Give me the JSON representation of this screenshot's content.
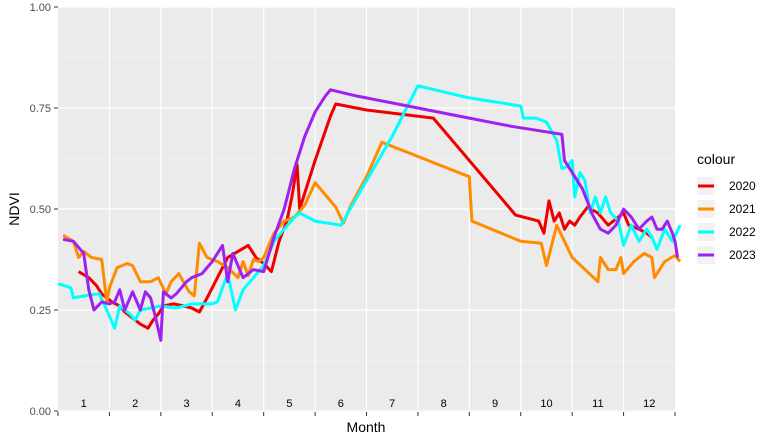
{
  "chart_data": {
    "type": "line",
    "xlabel": "Month",
    "ylabel": "NDVI",
    "ylim": [
      0,
      1
    ],
    "xlim": [
      0,
      12
    ],
    "y_ticks": [
      "0.00",
      "0.25",
      "0.50",
      "0.75",
      "1.00"
    ],
    "y_tick_values": [
      0,
      0.25,
      0.5,
      0.75,
      1.0
    ],
    "month_labels": [
      "1",
      "2",
      "3",
      "4",
      "5",
      "6",
      "7",
      "8",
      "9",
      "10",
      "11",
      "12"
    ],
    "legend_title": "colour",
    "legend_position": "right",
    "grid": true,
    "background": "#ebebeb",
    "series": [
      {
        "name": "2020",
        "color": "#ee0000",
        "points": [
          [
            0.4,
            0.345
          ],
          [
            0.6,
            0.33
          ],
          [
            0.75,
            0.31
          ],
          [
            0.85,
            0.29
          ],
          [
            0.95,
            0.28
          ],
          [
            1.05,
            0.27
          ],
          [
            1.2,
            0.26
          ],
          [
            1.3,
            0.245
          ],
          [
            1.45,
            0.23
          ],
          [
            1.6,
            0.215
          ],
          [
            1.75,
            0.205
          ],
          [
            1.85,
            0.225
          ],
          [
            1.95,
            0.24
          ],
          [
            2.05,
            0.26
          ],
          [
            2.25,
            0.265
          ],
          [
            2.45,
            0.26
          ],
          [
            2.6,
            0.255
          ],
          [
            2.75,
            0.245
          ],
          [
            2.9,
            0.28
          ],
          [
            3.1,
            0.33
          ],
          [
            3.3,
            0.38
          ],
          [
            3.5,
            0.395
          ],
          [
            3.7,
            0.41
          ],
          [
            3.85,
            0.38
          ],
          [
            4.0,
            0.365
          ],
          [
            4.15,
            0.345
          ],
          [
            4.3,
            0.42
          ],
          [
            4.45,
            0.47
          ],
          [
            4.55,
            0.53
          ],
          [
            4.65,
            0.61
          ],
          [
            4.7,
            0.5
          ],
          [
            5.0,
            0.62
          ],
          [
            5.3,
            0.73
          ],
          [
            5.4,
            0.76
          ],
          [
            6.0,
            0.745
          ],
          [
            7.3,
            0.725
          ],
          [
            8.2,
            0.59
          ],
          [
            8.9,
            0.485
          ],
          [
            9.35,
            0.47
          ],
          [
            9.45,
            0.44
          ],
          [
            9.55,
            0.52
          ],
          [
            9.65,
            0.47
          ],
          [
            9.75,
            0.49
          ],
          [
            9.85,
            0.45
          ],
          [
            9.95,
            0.47
          ],
          [
            10.05,
            0.46
          ],
          [
            10.15,
            0.48
          ],
          [
            10.3,
            0.505
          ],
          [
            10.5,
            0.49
          ],
          [
            10.7,
            0.46
          ],
          [
            10.9,
            0.48
          ],
          [
            11.0,
            0.49
          ],
          [
            11.1,
            0.46
          ],
          [
            11.3,
            0.45
          ],
          [
            11.45,
            0.44
          ],
          [
            11.55,
            0.43
          ]
        ]
      },
      {
        "name": "2021",
        "color": "#ff8c00",
        "points": [
          [
            0.1,
            0.435
          ],
          [
            0.3,
            0.42
          ],
          [
            0.4,
            0.38
          ],
          [
            0.5,
            0.395
          ],
          [
            0.65,
            0.38
          ],
          [
            0.85,
            0.375
          ],
          [
            0.95,
            0.27
          ],
          [
            1.0,
            0.305
          ],
          [
            1.15,
            0.355
          ],
          [
            1.35,
            0.365
          ],
          [
            1.45,
            0.36
          ],
          [
            1.6,
            0.32
          ],
          [
            1.8,
            0.32
          ],
          [
            1.95,
            0.33
          ],
          [
            2.1,
            0.29
          ],
          [
            2.2,
            0.32
          ],
          [
            2.35,
            0.34
          ],
          [
            2.55,
            0.295
          ],
          [
            2.65,
            0.285
          ],
          [
            2.75,
            0.415
          ],
          [
            2.9,
            0.38
          ],
          [
            3.1,
            0.37
          ],
          [
            3.3,
            0.355
          ],
          [
            3.5,
            0.33
          ],
          [
            3.6,
            0.37
          ],
          [
            3.7,
            0.335
          ],
          [
            3.8,
            0.375
          ],
          [
            3.9,
            0.37
          ],
          [
            4.0,
            0.38
          ],
          [
            4.2,
            0.44
          ],
          [
            4.4,
            0.47
          ],
          [
            4.6,
            0.48
          ],
          [
            4.8,
            0.51
          ],
          [
            5.0,
            0.565
          ],
          [
            5.2,
            0.535
          ],
          [
            5.4,
            0.505
          ],
          [
            5.55,
            0.465
          ],
          [
            5.7,
            0.51
          ],
          [
            6.0,
            0.58
          ],
          [
            6.3,
            0.665
          ],
          [
            6.8,
            0.64
          ],
          [
            7.5,
            0.605
          ],
          [
            8.0,
            0.58
          ],
          [
            8.05,
            0.47
          ],
          [
            9.0,
            0.42
          ],
          [
            9.4,
            0.415
          ],
          [
            9.5,
            0.36
          ],
          [
            9.7,
            0.46
          ],
          [
            10.0,
            0.38
          ],
          [
            10.5,
            0.32
          ],
          [
            10.55,
            0.38
          ],
          [
            10.7,
            0.35
          ],
          [
            10.85,
            0.35
          ],
          [
            10.95,
            0.38
          ],
          [
            11.0,
            0.34
          ],
          [
            11.2,
            0.37
          ],
          [
            11.4,
            0.39
          ],
          [
            11.55,
            0.38
          ],
          [
            11.6,
            0.33
          ],
          [
            11.8,
            0.37
          ],
          [
            12.0,
            0.385
          ],
          [
            12.1,
            0.37
          ]
        ]
      },
      {
        "name": "2022",
        "color": "#00ffff",
        "points": [
          [
            0.0,
            0.315
          ],
          [
            0.25,
            0.305
          ],
          [
            0.3,
            0.28
          ],
          [
            0.5,
            0.285
          ],
          [
            0.8,
            0.29
          ],
          [
            0.95,
            0.25
          ],
          [
            1.05,
            0.22
          ],
          [
            1.1,
            0.205
          ],
          [
            1.2,
            0.26
          ],
          [
            1.4,
            0.24
          ],
          [
            1.5,
            0.225
          ],
          [
            1.6,
            0.25
          ],
          [
            1.8,
            0.255
          ],
          [
            2.0,
            0.26
          ],
          [
            2.3,
            0.255
          ],
          [
            2.6,
            0.265
          ],
          [
            2.8,
            0.265
          ],
          [
            3.0,
            0.265
          ],
          [
            3.1,
            0.27
          ],
          [
            3.3,
            0.34
          ],
          [
            3.45,
            0.25
          ],
          [
            3.6,
            0.3
          ],
          [
            3.8,
            0.33
          ],
          [
            4.0,
            0.36
          ],
          [
            4.2,
            0.42
          ],
          [
            4.4,
            0.45
          ],
          [
            4.6,
            0.48
          ],
          [
            4.7,
            0.49
          ],
          [
            5.0,
            0.47
          ],
          [
            5.5,
            0.46
          ],
          [
            6.0,
            0.57
          ],
          [
            6.5,
            0.68
          ],
          [
            7.0,
            0.805
          ],
          [
            8.0,
            0.775
          ],
          [
            9.0,
            0.755
          ],
          [
            9.05,
            0.725
          ],
          [
            9.3,
            0.725
          ],
          [
            9.5,
            0.715
          ],
          [
            9.7,
            0.67
          ],
          [
            9.8,
            0.6
          ],
          [
            9.9,
            0.605
          ],
          [
            10.0,
            0.62
          ],
          [
            10.05,
            0.53
          ],
          [
            10.15,
            0.59
          ],
          [
            10.25,
            0.57
          ],
          [
            10.35,
            0.49
          ],
          [
            10.45,
            0.53
          ],
          [
            10.55,
            0.49
          ],
          [
            10.65,
            0.53
          ],
          [
            10.75,
            0.49
          ],
          [
            10.9,
            0.47
          ],
          [
            11.0,
            0.41
          ],
          [
            11.15,
            0.46
          ],
          [
            11.3,
            0.42
          ],
          [
            11.45,
            0.45
          ],
          [
            11.55,
            0.43
          ],
          [
            11.65,
            0.4
          ],
          [
            11.8,
            0.45
          ],
          [
            11.95,
            0.42
          ],
          [
            12.1,
            0.46
          ]
        ]
      },
      {
        "name": "2023",
        "color": "#a020f0",
        "points": [
          [
            0.1,
            0.425
          ],
          [
            0.3,
            0.42
          ],
          [
            0.5,
            0.39
          ],
          [
            0.6,
            0.3
          ],
          [
            0.7,
            0.25
          ],
          [
            0.85,
            0.27
          ],
          [
            1.0,
            0.265
          ],
          [
            1.1,
            0.27
          ],
          [
            1.2,
            0.3
          ],
          [
            1.3,
            0.25
          ],
          [
            1.45,
            0.295
          ],
          [
            1.6,
            0.25
          ],
          [
            1.7,
            0.295
          ],
          [
            1.8,
            0.28
          ],
          [
            1.9,
            0.23
          ],
          [
            2.0,
            0.175
          ],
          [
            2.05,
            0.295
          ],
          [
            2.2,
            0.28
          ],
          [
            2.3,
            0.29
          ],
          [
            2.5,
            0.32
          ],
          [
            2.6,
            0.33
          ],
          [
            2.8,
            0.34
          ],
          [
            3.0,
            0.37
          ],
          [
            3.2,
            0.41
          ],
          [
            3.3,
            0.32
          ],
          [
            3.4,
            0.39
          ],
          [
            3.6,
            0.33
          ],
          [
            3.8,
            0.35
          ],
          [
            4.0,
            0.345
          ],
          [
            4.2,
            0.43
          ],
          [
            4.4,
            0.5
          ],
          [
            4.6,
            0.6
          ],
          [
            4.8,
            0.68
          ],
          [
            5.0,
            0.74
          ],
          [
            5.2,
            0.78
          ],
          [
            5.3,
            0.795
          ],
          [
            5.8,
            0.78
          ],
          [
            6.8,
            0.755
          ],
          [
            7.8,
            0.73
          ],
          [
            8.8,
            0.705
          ],
          [
            9.8,
            0.685
          ],
          [
            9.85,
            0.62
          ],
          [
            10.0,
            0.59
          ],
          [
            10.2,
            0.55
          ],
          [
            10.4,
            0.485
          ],
          [
            10.55,
            0.45
          ],
          [
            10.7,
            0.44
          ],
          [
            10.85,
            0.46
          ],
          [
            11.0,
            0.5
          ],
          [
            11.15,
            0.48
          ],
          [
            11.3,
            0.45
          ],
          [
            11.45,
            0.47
          ],
          [
            11.55,
            0.48
          ],
          [
            11.65,
            0.45
          ],
          [
            11.75,
            0.45
          ],
          [
            11.85,
            0.47
          ],
          [
            11.95,
            0.44
          ],
          [
            12.0,
            0.42
          ],
          [
            12.05,
            0.38
          ]
        ]
      }
    ]
  }
}
